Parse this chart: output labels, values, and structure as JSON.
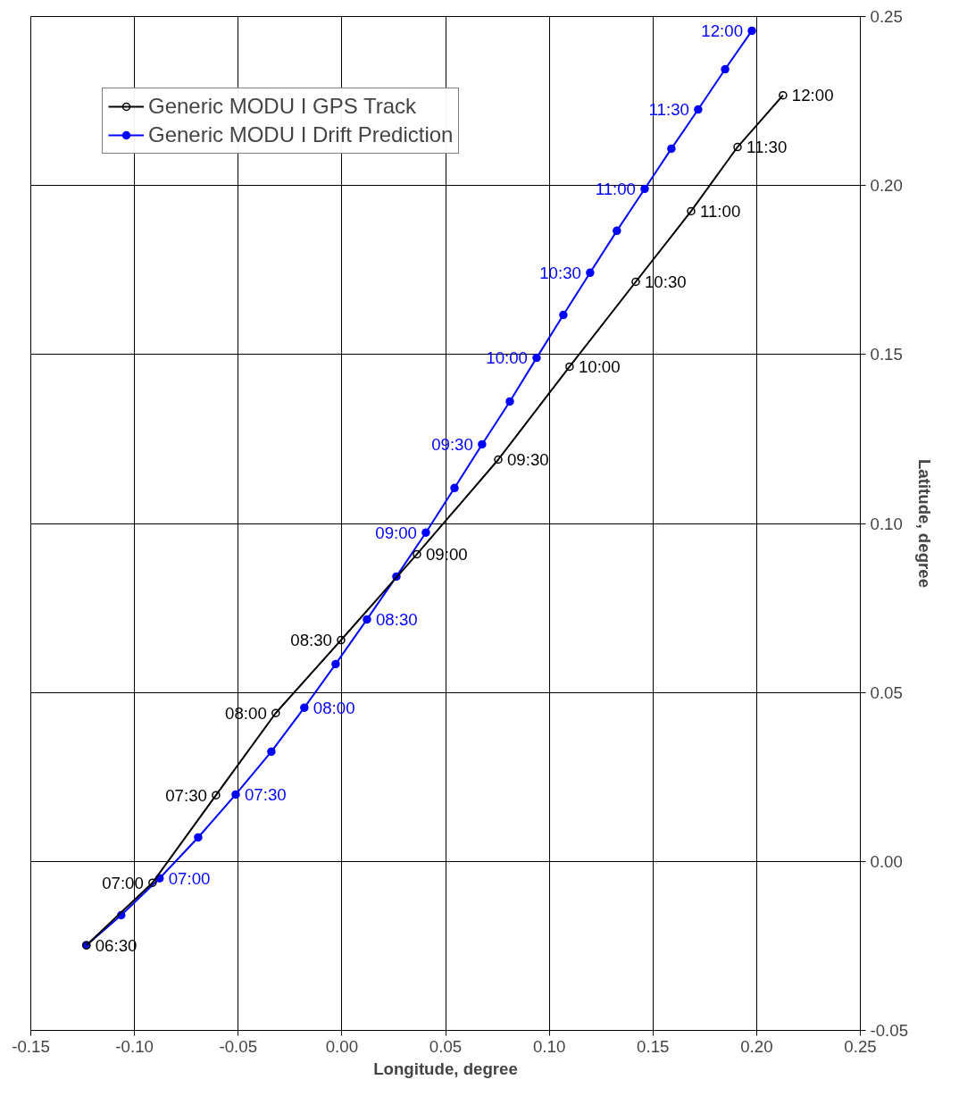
{
  "chart_data": {
    "type": "line",
    "xlabel": "Longitude, degree",
    "ylabel": "Latitude, degree",
    "xlim": [
      -0.15,
      0.25
    ],
    "ylim": [
      -0.05,
      0.25
    ],
    "xticks": [
      {
        "value": -0.15,
        "label": "-0.15"
      },
      {
        "value": -0.1,
        "label": "-0.10"
      },
      {
        "value": -0.05,
        "label": "-0.05"
      },
      {
        "value": 0,
        "label": "0.00"
      },
      {
        "value": 0.05,
        "label": "0.05"
      },
      {
        "value": 0.1,
        "label": "0.10"
      },
      {
        "value": 0.15,
        "label": "0.15"
      },
      {
        "value": 0.2,
        "label": "0.20"
      },
      {
        "value": 0.25,
        "label": "0.25"
      }
    ],
    "yticks": [
      {
        "value": -0.05,
        "label": "-0.05"
      },
      {
        "value": 0,
        "label": "0.00"
      },
      {
        "value": 0.05,
        "label": "0.05"
      },
      {
        "value": 0.1,
        "label": "0.10"
      },
      {
        "value": 0.15,
        "label": "0.15"
      },
      {
        "value": 0.2,
        "label": "0.20"
      },
      {
        "value": 0.25,
        "label": "0.25"
      }
    ],
    "grid": true,
    "legend": "top left",
    "marker": "circle",
    "line_style": "solid",
    "series": [
      {
        "name": "Generic MODU I GPS Track",
        "color": "#000000",
        "x": [
          -0.1232,
          -0.0913,
          -0.0607,
          -0.0319,
          -0.0004,
          0.0362,
          0.0754,
          0.1098,
          0.1417,
          0.1684,
          0.1908,
          0.2127
        ],
        "values": [
          -0.0248,
          -0.0063,
          0.0196,
          0.0439,
          0.0655,
          0.0909,
          0.1189,
          0.1464,
          0.1715,
          0.1924,
          0.2114,
          0.2267
        ]
      },
      {
        "name": "Generic MODU I Drift Prediction",
        "color": "#0000ff",
        "x": [
          -0.1232,
          -0.1064,
          -0.0879,
          -0.0693,
          -0.0512,
          -0.034,
          -0.0181,
          -0.003,
          0.0121,
          0.0263,
          0.0405,
          0.0543,
          0.0676,
          0.081,
          0.0939,
          0.1068,
          0.1197,
          0.1326,
          0.146,
          0.1589,
          0.1718,
          0.1848,
          0.1977
        ],
        "values": [
          -0.0248,
          -0.0159,
          -0.005,
          0.0071,
          0.0198,
          0.0325,
          0.0455,
          0.0584,
          0.0716,
          0.0843,
          0.0973,
          0.1105,
          0.1234,
          0.1361,
          0.149,
          0.1617,
          0.1742,
          0.1866,
          0.199,
          0.2109,
          0.2225,
          0.2344,
          0.2458
        ]
      }
    ],
    "annotations": [
      {
        "text": "06:30",
        "x": -0.1232,
        "y": -0.0248
      },
      {
        "text": "07:00",
        "x": -0.0913,
        "y": -0.0063
      },
      {
        "text": "07:30",
        "x": -0.0607,
        "y": 0.0196
      },
      {
        "text": "08:00",
        "x": -0.0319,
        "y": 0.0439
      },
      {
        "text": "08:30",
        "x": -0.0004,
        "y": 0.0655
      },
      {
        "text": "09:00",
        "x": 0.0362,
        "y": 0.0909
      },
      {
        "text": "09:30",
        "x": 0.0754,
        "y": 0.1189
      },
      {
        "text": "10:00",
        "x": 0.1098,
        "y": 0.1464
      },
      {
        "text": "10:30",
        "x": 0.1417,
        "y": 0.1715
      },
      {
        "text": "11:00",
        "x": 0.1684,
        "y": 0.1924
      },
      {
        "text": "11:30",
        "x": 0.1908,
        "y": 0.2114
      },
      {
        "text": "12:00",
        "x": 0.2127,
        "y": 0.2267
      },
      {
        "text": "07:00",
        "x": -0.0879,
        "y": -0.005
      },
      {
        "text": "07:30",
        "x": -0.0512,
        "y": 0.0198
      },
      {
        "text": "08:00",
        "x": -0.0181,
        "y": 0.0455
      },
      {
        "text": "08:30",
        "x": 0.0121,
        "y": 0.0716
      },
      {
        "text": "09:00",
        "x": 0.0405,
        "y": 0.0973
      },
      {
        "text": "09:30",
        "x": 0.0676,
        "y": 0.1234
      },
      {
        "text": "10:00",
        "x": 0.0939,
        "y": 0.149
      },
      {
        "text": "10:30",
        "x": 0.1197,
        "y": 0.1742
      },
      {
        "text": "11:00",
        "x": 0.146,
        "y": 0.199
      },
      {
        "text": "11:30",
        "x": 0.1718,
        "y": 0.2225
      },
      {
        "text": "12:00",
        "x": 0.1977,
        "y": 0.2458
      }
    ]
  }
}
